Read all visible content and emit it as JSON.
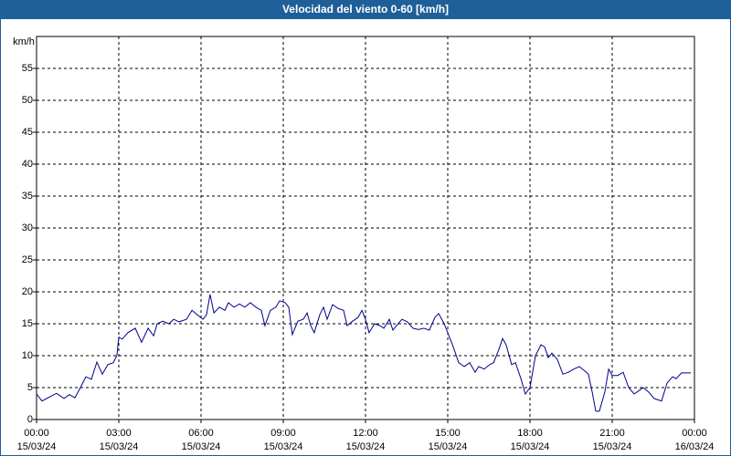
{
  "chart_data": {
    "type": "line",
    "title": "Velocidad del viento 0-60 [km/h]",
    "ylabel": "km/h",
    "ylim": [
      0,
      60
    ],
    "yticks": [
      0,
      5,
      10,
      15,
      20,
      25,
      30,
      35,
      40,
      45,
      50,
      55
    ],
    "xlim": [
      0,
      24
    ],
    "xticks": [
      {
        "value": 0,
        "label": "00:00"
      },
      {
        "value": 3,
        "label": "03:00"
      },
      {
        "value": 6,
        "label": "06:00"
      },
      {
        "value": 9,
        "label": "09:00"
      },
      {
        "value": 12,
        "label": "12:00"
      },
      {
        "value": 15,
        "label": "15:00"
      },
      {
        "value": 18,
        "label": "18:00"
      },
      {
        "value": 21,
        "label": "21:00"
      },
      {
        "value": 24,
        "label": "00:00"
      }
    ],
    "xtick_dates": [
      "15/03/24",
      "15/03/24",
      "15/03/24",
      "15/03/24",
      "15/03/24",
      "15/03/24",
      "15/03/24",
      "15/03/24",
      "16/03/24"
    ],
    "grid": true,
    "x": [
      0,
      0.2,
      0.5,
      0.73,
      1,
      1.2,
      1.4,
      1.6,
      1.8,
      2,
      2.2,
      2.4,
      2.6,
      2.8,
      2.93,
      3,
      3.13,
      3.33,
      3.6,
      3.83,
      4.07,
      4.27,
      4.4,
      4.6,
      4.83,
      5,
      5.2,
      5.47,
      5.67,
      5.87,
      6.07,
      6.2,
      6.33,
      6.47,
      6.67,
      6.87,
      7,
      7.2,
      7.4,
      7.6,
      7.8,
      8,
      8.2,
      8.33,
      8.53,
      8.73,
      8.87,
      9.07,
      9.2,
      9.33,
      9.53,
      9.73,
      9.87,
      10,
      10.13,
      10.33,
      10.47,
      10.6,
      10.8,
      11,
      11.2,
      11.33,
      11.53,
      11.73,
      11.87,
      12,
      12.13,
      12.33,
      12.53,
      12.67,
      12.87,
      13,
      13.13,
      13.33,
      13.53,
      13.73,
      13.93,
      14.13,
      14.33,
      14.53,
      14.67,
      14.87,
      15,
      15.2,
      15.4,
      15.6,
      15.8,
      16,
      16.13,
      16.33,
      16.53,
      16.67,
      16.87,
      17,
      17.13,
      17.33,
      17.47,
      17.67,
      17.83,
      18,
      18.2,
      18.4,
      18.53,
      18.67,
      18.8,
      19,
      19.2,
      19.4,
      19.6,
      19.8,
      20,
      20.13,
      20.27,
      20.4,
      20.53,
      20.73,
      20.87,
      21,
      21.2,
      21.4,
      21.6,
      21.8,
      22,
      22.13,
      22.33,
      22.53,
      22.8,
      23,
      23.2,
      23.33,
      23.53,
      23.87
    ],
    "series": [
      {
        "color": "#00008b",
        "values": [
          4,
          2.9,
          3.6,
          4.1,
          3.3,
          3.9,
          3.4,
          5,
          6.7,
          6.3,
          9,
          7.1,
          8.6,
          8.9,
          10,
          12.9,
          12.6,
          13.6,
          14.3,
          12.1,
          14.3,
          13.1,
          15,
          15.4,
          15,
          15.7,
          15.3,
          15.7,
          17.1,
          16.4,
          15.7,
          16.4,
          19.6,
          16.7,
          17.6,
          17.1,
          18.3,
          17.6,
          18.1,
          17.6,
          18.3,
          17.6,
          17.1,
          14.7,
          17.1,
          17.6,
          18.6,
          18.3,
          17.6,
          13.3,
          15.4,
          15.7,
          16.7,
          14.7,
          13.6,
          16.4,
          17.6,
          15.7,
          18,
          17.4,
          17.1,
          14.7,
          15.4,
          16,
          17.1,
          15.7,
          13.6,
          15,
          14.7,
          14.3,
          15.7,
          14,
          14.7,
          15.7,
          15.3,
          14.3,
          14.1,
          14.3,
          14,
          16,
          16.6,
          15,
          13.6,
          11.4,
          8.9,
          8.3,
          8.9,
          7.4,
          8.3,
          7.9,
          8.6,
          8.9,
          11,
          12.7,
          11.7,
          8.6,
          8.9,
          6.4,
          4,
          5,
          10,
          11.7,
          11.4,
          9.7,
          10.4,
          9.4,
          7.1,
          7.4,
          7.9,
          8.3,
          7.6,
          7.1,
          4.3,
          1.3,
          1.3,
          4.3,
          7.9,
          6.9,
          6.9,
          7.4,
          5,
          4,
          4.6,
          5,
          4.3,
          3.3,
          2.9,
          5.7,
          6.7,
          6.4,
          7.3,
          7.3
        ]
      }
    ]
  }
}
